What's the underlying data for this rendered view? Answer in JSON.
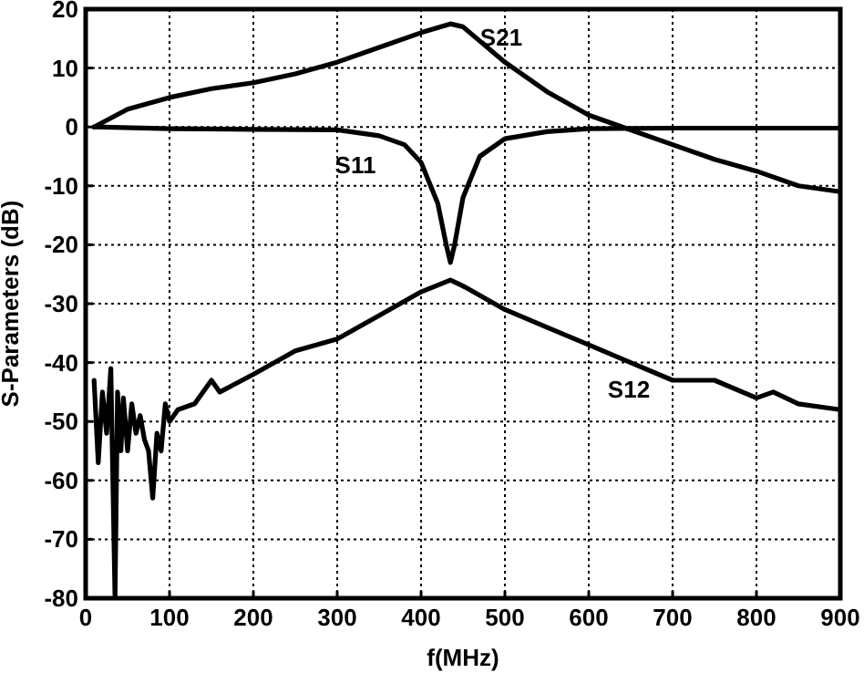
{
  "chart_data": {
    "type": "line",
    "xlabel": "f(MHz)",
    "ylabel": "S-Parameters (dB)",
    "xlim": [
      0,
      900
    ],
    "ylim": [
      -80,
      20
    ],
    "xticks": [
      0,
      100,
      200,
      300,
      400,
      500,
      600,
      700,
      800,
      900
    ],
    "yticks": [
      -80,
      -70,
      -60,
      -50,
      -40,
      -30,
      -20,
      -10,
      0,
      10,
      20
    ],
    "grid": true,
    "line_style": "solid",
    "series": [
      {
        "name": "S21",
        "color": "#000000",
        "x": [
          10,
          50,
          100,
          150,
          200,
          250,
          300,
          350,
          400,
          435,
          450,
          500,
          550,
          600,
          640,
          700,
          750,
          800,
          850,
          900
        ],
        "values": [
          0,
          3,
          5,
          6.5,
          7.5,
          9,
          11,
          13.5,
          16,
          17.5,
          17,
          11,
          6,
          2,
          0,
          -3,
          -5.5,
          -7.5,
          -10,
          -11
        ]
      },
      {
        "name": "S11",
        "color": "#000000",
        "x": [
          10,
          100,
          200,
          300,
          350,
          380,
          400,
          420,
          430,
          435,
          440,
          450,
          470,
          500,
          550,
          600,
          700,
          800,
          900
        ],
        "values": [
          0,
          -0.3,
          -0.4,
          -0.5,
          -1.5,
          -3,
          -6,
          -13,
          -20,
          -23,
          -20,
          -12,
          -5,
          -2,
          -0.8,
          -0.3,
          -0.2,
          -0.2,
          -0.2
        ]
      },
      {
        "name": "S12",
        "color": "#000000",
        "x": [
          10,
          15,
          20,
          25,
          30,
          35,
          38,
          42,
          45,
          50,
          55,
          60,
          65,
          70,
          75,
          80,
          85,
          90,
          95,
          100,
          110,
          130,
          150,
          160,
          200,
          250,
          300,
          350,
          400,
          435,
          450,
          500,
          550,
          600,
          650,
          700,
          750,
          800,
          820,
          850,
          900
        ],
        "values": [
          -43,
          -57,
          -45,
          -52,
          -41,
          -80,
          -45,
          -55,
          -46,
          -55,
          -47,
          -52,
          -49,
          -53,
          -55,
          -63,
          -52,
          -55,
          -47,
          -50,
          -48,
          -47,
          -43,
          -45,
          -42,
          -38,
          -36,
          -32,
          -28,
          -26,
          -27,
          -31,
          -34,
          -37,
          -40,
          -43,
          -43,
          -46,
          -45,
          -47,
          -48
        ]
      }
    ]
  }
}
